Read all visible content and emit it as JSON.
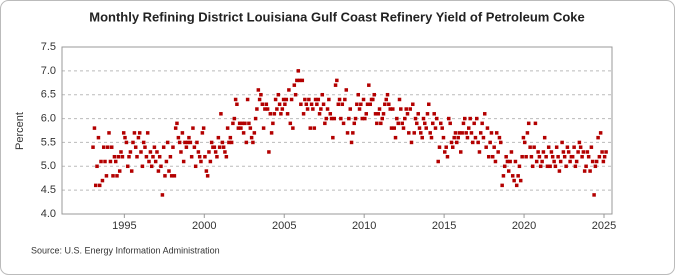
{
  "chart_data": {
    "type": "scatter",
    "title": "Monthly Refining District Louisiana Gulf Coast Refinery Yield of Petroleum Coke",
    "y_label": "Percent",
    "source": "Source: U.S. Energy Information Administration",
    "color": "#b30000",
    "grid": true,
    "xlim": [
      1991.1,
      2025.5
    ],
    "ylim": [
      4,
      7.5
    ],
    "xticks": [
      1995,
      2000,
      2005,
      2010,
      2015,
      2020,
      2025
    ],
    "yticks": [
      {
        "value": 4,
        "label": "4.0"
      },
      4.5,
      {
        "value": 5,
        "label": "5.0"
      },
      5.5,
      {
        "value": 6,
        "label": "6.0"
      },
      6.5,
      {
        "value": 7,
        "label": "7.0"
      },
      7.5
    ],
    "x": [
      1993.04,
      1993.13,
      1993.21,
      1993.29,
      1993.38,
      1993.46,
      1993.54,
      1993.63,
      1993.71,
      1993.79,
      1993.88,
      1993.96,
      1994.04,
      1994.13,
      1994.21,
      1994.29,
      1994.38,
      1994.46,
      1994.54,
      1994.63,
      1994.71,
      1994.79,
      1994.88,
      1994.96,
      1995.04,
      1995.13,
      1995.21,
      1995.29,
      1995.38,
      1995.46,
      1995.54,
      1995.63,
      1995.71,
      1995.79,
      1995.88,
      1995.96,
      1996.04,
      1996.13,
      1996.21,
      1996.29,
      1996.38,
      1996.46,
      1996.54,
      1996.63,
      1996.71,
      1996.79,
      1996.88,
      1996.96,
      1997.04,
      1997.13,
      1997.21,
      1997.29,
      1997.38,
      1997.46,
      1997.54,
      1997.63,
      1997.71,
      1997.79,
      1997.88,
      1997.96,
      1998.04,
      1998.13,
      1998.21,
      1998.29,
      1998.38,
      1998.46,
      1998.54,
      1998.63,
      1998.71,
      1998.79,
      1998.88,
      1998.96,
      1999.04,
      1999.13,
      1999.21,
      1999.29,
      1999.38,
      1999.46,
      1999.54,
      1999.63,
      1999.71,
      1999.79,
      1999.88,
      1999.96,
      2000.04,
      2000.13,
      2000.21,
      2000.29,
      2000.38,
      2000.46,
      2000.54,
      2000.63,
      2000.71,
      2000.79,
      2000.88,
      2000.96,
      2001.04,
      2001.13,
      2001.21,
      2001.29,
      2001.38,
      2001.46,
      2001.54,
      2001.63,
      2001.71,
      2001.79,
      2001.88,
      2001.96,
      2002.04,
      2002.13,
      2002.21,
      2002.29,
      2002.38,
      2002.46,
      2002.54,
      2002.63,
      2002.71,
      2002.79,
      2002.88,
      2002.96,
      2003.04,
      2003.13,
      2003.21,
      2003.29,
      2003.38,
      2003.46,
      2003.54,
      2003.63,
      2003.71,
      2003.79,
      2003.88,
      2003.96,
      2004.04,
      2004.13,
      2004.21,
      2004.29,
      2004.38,
      2004.46,
      2004.54,
      2004.63,
      2004.71,
      2004.79,
      2004.88,
      2004.96,
      2005.04,
      2005.13,
      2005.21,
      2005.29,
      2005.38,
      2005.46,
      2005.54,
      2005.63,
      2005.71,
      2005.79,
      2005.88,
      2005.96,
      2006.04,
      2006.13,
      2006.21,
      2006.29,
      2006.38,
      2006.46,
      2006.54,
      2006.63,
      2006.71,
      2006.79,
      2006.88,
      2006.96,
      2007.04,
      2007.13,
      2007.21,
      2007.29,
      2007.38,
      2007.46,
      2007.54,
      2007.63,
      2007.71,
      2007.79,
      2007.88,
      2007.96,
      2008.04,
      2008.13,
      2008.21,
      2008.29,
      2008.38,
      2008.46,
      2008.54,
      2008.63,
      2008.71,
      2008.79,
      2008.88,
      2008.96,
      2009.04,
      2009.13,
      2009.21,
      2009.29,
      2009.38,
      2009.46,
      2009.54,
      2009.63,
      2009.71,
      2009.79,
      2009.88,
      2009.96,
      2010.04,
      2010.13,
      2010.21,
      2010.29,
      2010.38,
      2010.46,
      2010.54,
      2010.63,
      2010.71,
      2010.79,
      2010.88,
      2010.96,
      2011.04,
      2011.13,
      2011.21,
      2011.29,
      2011.38,
      2011.46,
      2011.54,
      2011.63,
      2011.71,
      2011.79,
      2011.88,
      2011.96,
      2012.04,
      2012.13,
      2012.21,
      2012.29,
      2012.38,
      2012.46,
      2012.54,
      2012.63,
      2012.71,
      2012.79,
      2012.88,
      2012.96,
      2013.04,
      2013.13,
      2013.21,
      2013.29,
      2013.38,
      2013.46,
      2013.54,
      2013.63,
      2013.71,
      2013.79,
      2013.88,
      2013.96,
      2014.04,
      2014.13,
      2014.21,
      2014.29,
      2014.38,
      2014.46,
      2014.54,
      2014.63,
      2014.71,
      2014.79,
      2014.88,
      2014.96,
      2015.04,
      2015.13,
      2015.21,
      2015.29,
      2015.38,
      2015.46,
      2015.54,
      2015.63,
      2015.71,
      2015.79,
      2015.88,
      2015.96,
      2016.04,
      2016.13,
      2016.21,
      2016.29,
      2016.38,
      2016.46,
      2016.54,
      2016.63,
      2016.71,
      2016.79,
      2016.88,
      2016.96,
      2017.04,
      2017.13,
      2017.21,
      2017.29,
      2017.38,
      2017.46,
      2017.54,
      2017.63,
      2017.71,
      2017.79,
      2017.88,
      2017.96,
      2018.04,
      2018.13,
      2018.21,
      2018.29,
      2018.38,
      2018.46,
      2018.54,
      2018.63,
      2018.71,
      2018.79,
      2018.88,
      2018.96,
      2019.04,
      2019.13,
      2019.21,
      2019.29,
      2019.38,
      2019.46,
      2019.54,
      2019.63,
      2019.71,
      2019.79,
      2019.88,
      2019.96,
      2020.04,
      2020.13,
      2020.21,
      2020.29,
      2020.38,
      2020.46,
      2020.54,
      2020.63,
      2020.71,
      2020.79,
      2020.88,
      2020.96,
      2021.04,
      2021.13,
      2021.21,
      2021.29,
      2021.38,
      2021.46,
      2021.54,
      2021.63,
      2021.71,
      2021.79,
      2021.88,
      2021.96,
      2022.04,
      2022.13,
      2022.21,
      2022.29,
      2022.38,
      2022.46,
      2022.54,
      2022.63,
      2022.71,
      2022.79,
      2022.88,
      2022.96,
      2023.04,
      2023.13,
      2023.21,
      2023.29,
      2023.38,
      2023.46,
      2023.54,
      2023.63,
      2023.71,
      2023.79,
      2023.88,
      2023.96,
      2024.04,
      2024.13,
      2024.21,
      2024.29,
      2024.38,
      2024.46,
      2024.54,
      2024.63,
      2024.71,
      2024.79,
      2024.88,
      2024.96,
      2025.04,
      2025.13
    ],
    "values": [
      5.4,
      5.8,
      4.6,
      5.0,
      5.6,
      4.6,
      5.1,
      4.7,
      5.4,
      5.1,
      4.8,
      5.4,
      5.7,
      5.1,
      5.4,
      4.8,
      5.2,
      5.1,
      4.8,
      5.2,
      4.9,
      5.3,
      5.2,
      5.7,
      5.6,
      5.5,
      5.0,
      5.2,
      5.3,
      4.9,
      5.5,
      5.7,
      5.4,
      5.2,
      5.6,
      5.7,
      5.3,
      5.0,
      5.5,
      5.4,
      5.2,
      5.7,
      5.1,
      5.3,
      5.0,
      5.2,
      5.4,
      5.1,
      5.3,
      4.9,
      5.2,
      5.0,
      4.4,
      5.4,
      4.8,
      5.1,
      5.5,
      4.9,
      5.2,
      4.8,
      5.4,
      4.8,
      5.8,
      5.9,
      5.6,
      5.5,
      5.3,
      5.7,
      5.1,
      5.5,
      5.4,
      5.5,
      5.6,
      5.5,
      5.2,
      5.8,
      5.4,
      5.0,
      5.5,
      5.3,
      5.2,
      5.1,
      5.7,
      5.8,
      5.2,
      4.9,
      4.8,
      5.3,
      5.1,
      5.5,
      5.4,
      5.4,
      5.3,
      5.2,
      5.6,
      5.4,
      6.1,
      5.5,
      5.4,
      5.3,
      5.2,
      5.8,
      5.5,
      5.6,
      5.5,
      5.9,
      6.0,
      6.4,
      6.3,
      5.8,
      5.9,
      5.8,
      5.9,
      5.7,
      5.9,
      5.5,
      6.4,
      5.9,
      5.8,
      5.6,
      5.5,
      5.7,
      6.0,
      6.2,
      6.6,
      6.4,
      6.5,
      6.3,
      5.8,
      6.2,
      6.3,
      6.2,
      5.3,
      6.1,
      5.7,
      5.9,
      6.1,
      6.4,
      6.2,
      6.5,
      6.3,
      6.1,
      6.2,
      6.4,
      6.3,
      6.4,
      6.1,
      6.6,
      5.9,
      6.4,
      5.8,
      6.7,
      6.5,
      6.8,
      7.0,
      6.8,
      6.3,
      6.8,
      6.1,
      6.4,
      6.3,
      6.2,
      6.4,
      5.8,
      6.3,
      6.2,
      5.8,
      6.4,
      6.3,
      6.4,
      6.1,
      6.2,
      6.5,
      6.3,
      5.9,
      6.0,
      6.2,
      6.4,
      6.1,
      6.0,
      5.6,
      6.0,
      6.7,
      6.8,
      6.3,
      6.4,
      6.0,
      6.3,
      5.9,
      6.4,
      6.6,
      5.7,
      6.0,
      6.2,
      5.5,
      5.7,
      5.9,
      6.0,
      6.3,
      6.5,
      6.2,
      6.3,
      6.0,
      6.4,
      6.0,
      6.1,
      6.3,
      6.7,
      6.3,
      6.4,
      6.4,
      6.5,
      6.1,
      5.9,
      6.1,
      6.2,
      5.9,
      6.0,
      6.1,
      6.3,
      6.4,
      6.5,
      6.3,
      6.2,
      5.8,
      6.2,
      5.8,
      5.6,
      6.0,
      5.9,
      6.4,
      6.2,
      5.9,
      5.8,
      6.0,
      6.2,
      6.1,
      5.7,
      6.2,
      5.5,
      6.3,
      5.7,
      6.0,
      5.9,
      6.1,
      5.8,
      5.7,
      5.6,
      6.0,
      5.9,
      5.8,
      6.1,
      6.3,
      5.7,
      5.6,
      5.9,
      6.1,
      5.8,
      6.0,
      5.1,
      5.4,
      5.9,
      5.8,
      5.6,
      5.3,
      5.4,
      5.2,
      6.0,
      5.9,
      5.5,
      5.4,
      5.6,
      5.7,
      5.5,
      5.6,
      5.7,
      5.3,
      5.7,
      5.9,
      6.0,
      5.7,
      5.6,
      5.8,
      6.0,
      5.7,
      5.5,
      5.9,
      5.6,
      6.0,
      5.5,
      5.3,
      5.7,
      5.9,
      5.6,
      6.1,
      5.4,
      5.8,
      5.2,
      5.5,
      5.7,
      5.2,
      5.4,
      5.1,
      5.7,
      5.3,
      5.6,
      5.5,
      4.6,
      4.8,
      5.0,
      5.2,
      5.1,
      4.9,
      5.1,
      5.3,
      4.8,
      4.7,
      5.1,
      4.6,
      4.8,
      5.0,
      4.7,
      5.2,
      5.6,
      5.5,
      5.2,
      5.7,
      5.9,
      5.4,
      5.2,
      5.0,
      5.4,
      5.9,
      5.1,
      5.3,
      5.2,
      5.0,
      5.1,
      5.3,
      5.6,
      5.2,
      5.0,
      5.4,
      5.0,
      5.3,
      5.2,
      5.1,
      5.0,
      5.4,
      5.2,
      4.9,
      5.1,
      5.5,
      5.3,
      5.2,
      5.0,
      5.4,
      5.3,
      5.1,
      5.2,
      5.2,
      5.4,
      5.0,
      5.1,
      5.3,
      5.5,
      5.4,
      5.2,
      5.3,
      4.9,
      5.0,
      5.3,
      5.2,
      4.9,
      5.4,
      5.1,
      4.4,
      5.0,
      5.1,
      5.6,
      5.2,
      5.7,
      5.3,
      5.1,
      5.2,
      5.3
    ]
  }
}
